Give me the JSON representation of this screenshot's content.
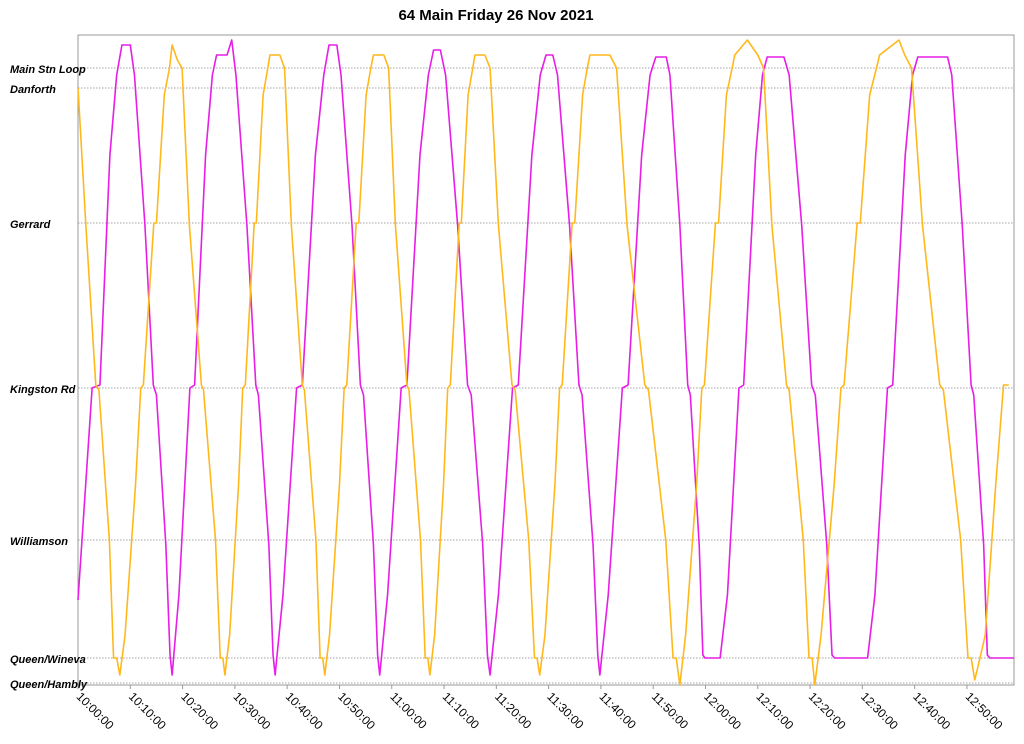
{
  "chart_data": {
    "type": "line",
    "title": "64 Main Friday 26 Nov 2021",
    "xlim": [
      600,
      779
    ],
    "xticks": [
      {
        "value": 600,
        "label": "10:00:00"
      },
      {
        "value": 610,
        "label": "10:10:00"
      },
      {
        "value": 620,
        "label": "10:20:00"
      },
      {
        "value": 630,
        "label": "10:30:00"
      },
      {
        "value": 640,
        "label": "10:40:00"
      },
      {
        "value": 650,
        "label": "10:50:00"
      },
      {
        "value": 660,
        "label": "11:00:00"
      },
      {
        "value": 670,
        "label": "11:10:00"
      },
      {
        "value": 680,
        "label": "11:20:00"
      },
      {
        "value": 690,
        "label": "11:30:00"
      },
      {
        "value": 700,
        "label": "11:40:00"
      },
      {
        "value": 710,
        "label": "11:50:00"
      },
      {
        "value": 720,
        "label": "12:00:00"
      },
      {
        "value": 730,
        "label": "12:10:00"
      },
      {
        "value": 740,
        "label": "12:20:00"
      },
      {
        "value": 750,
        "label": "12:30:00"
      },
      {
        "value": 760,
        "label": "12:40:00"
      },
      {
        "value": 770,
        "label": "12:50:00"
      }
    ],
    "ylim": [
      0,
      6.5
    ],
    "yticks": [
      {
        "value": 6.17,
        "label": "Main Stn Loop"
      },
      {
        "value": 5.97,
        "label": "Danforth"
      },
      {
        "value": 4.62,
        "label": "Gerrard"
      },
      {
        "value": 2.97,
        "label": "Kingston Rd"
      },
      {
        "value": 1.45,
        "label": "Williamson"
      },
      {
        "value": 0.27,
        "label": "Queen/Wineva"
      },
      {
        "value": 0.02,
        "label": "Queen/Hambly"
      }
    ],
    "grid": true,
    "series": [
      {
        "color": "#e61ee6",
        "x": [
          600.0,
          602.7,
          604.2,
          606.1,
          607.4,
          608.4,
          610.0,
          610.8,
          612.8,
          614.4,
          615.0,
          616.8,
          617.6,
          618.0,
          619.3,
          621.4,
          622.3,
          624.4,
          625.7,
          626.5,
          628.5,
          629.4,
          630.2,
          632.3,
          634.0,
          634.5,
          636.5,
          637.3,
          637.7,
          639.2,
          641.8,
          642.9,
          645.4,
          647.0,
          648.0,
          649.5,
          650.3,
          652.4,
          654.0,
          654.6,
          656.5,
          657.3,
          657.7,
          659.2,
          661.8,
          662.9,
          665.4,
          667.0,
          668.0,
          669.3,
          670.3,
          672.6,
          674.5,
          675.2,
          677.4,
          678.3,
          678.8,
          680.4,
          683.1,
          684.2,
          686.8,
          688.4,
          689.5,
          690.8,
          691.7,
          694.0,
          695.8,
          696.4,
          698.5,
          699.4,
          699.8,
          701.4,
          704.1,
          705.2,
          707.8,
          709.4,
          710.5,
          712.5,
          713.2,
          715.1,
          716.6,
          717.1,
          718.8,
          719.5,
          719.9,
          722.8,
          724.2,
          726.4,
          727.3,
          729.6,
          730.9,
          731.8,
          735.0,
          736.0,
          738.4,
          740.3,
          741.0,
          743.2,
          744.2,
          744.7,
          751.0,
          752.4,
          754.8,
          755.8,
          758.2,
          759.6,
          760.6,
          766.3,
          767.1,
          769.1,
          770.8,
          771.3,
          773.2,
          773.9,
          774.4,
          779.0
        ],
        "values": [
          0.85,
          2.97,
          3.0,
          5.3,
          6.1,
          6.4,
          6.4,
          6.1,
          4.6,
          3.0,
          2.9,
          1.4,
          0.3,
          0.1,
          0.9,
          2.97,
          3.0,
          5.3,
          6.1,
          6.3,
          6.3,
          6.45,
          6.1,
          4.6,
          3.0,
          2.9,
          1.4,
          0.3,
          0.1,
          0.9,
          2.97,
          3.0,
          5.3,
          6.1,
          6.4,
          6.4,
          6.1,
          4.6,
          3.0,
          2.9,
          1.4,
          0.3,
          0.1,
          0.9,
          2.97,
          3.0,
          5.3,
          6.1,
          6.35,
          6.35,
          6.1,
          4.6,
          3.0,
          2.9,
          1.4,
          0.3,
          0.1,
          0.9,
          2.97,
          3.0,
          5.3,
          6.1,
          6.3,
          6.3,
          6.1,
          4.6,
          3.0,
          2.9,
          1.4,
          0.3,
          0.1,
          0.9,
          2.97,
          3.0,
          5.3,
          6.1,
          6.28,
          6.28,
          6.1,
          4.6,
          3.0,
          2.9,
          1.4,
          0.3,
          0.27,
          0.27,
          0.9,
          2.97,
          3.0,
          5.3,
          6.1,
          6.28,
          6.28,
          6.1,
          4.6,
          3.0,
          2.9,
          1.4,
          0.3,
          0.27,
          0.27,
          0.9,
          2.97,
          3.0,
          5.3,
          6.1,
          6.28,
          6.28,
          6.1,
          4.6,
          3.0,
          2.9,
          1.4,
          0.3,
          0.27,
          0.27
        ]
      },
      {
        "color": "#ffb81c",
        "x": [
          600.0,
          601.5,
          603.4,
          604.0,
          606.0,
          606.8,
          607.4,
          608.0,
          609.0,
          611.0,
          612.0,
          612.5,
          614.5,
          615.0,
          616.5,
          617.5,
          618.0,
          619.0,
          619.9,
          621.3,
          623.6,
          624.0,
          626.3,
          627.2,
          627.7,
          628.1,
          629.0,
          630.7,
          631.5,
          632.0,
          633.7,
          634.1,
          635.4,
          636.3,
          636.7,
          638.6,
          639.5,
          640.8,
          642.9,
          643.3,
          645.5,
          646.3,
          646.8,
          647.2,
          648.1,
          650.0,
          650.9,
          651.4,
          653.2,
          653.7,
          655.1,
          656.0,
          656.5,
          658.5,
          659.4,
          660.7,
          662.9,
          663.3,
          665.5,
          666.4,
          666.9,
          667.3,
          668.2,
          669.9,
          670.7,
          671.2,
          672.9,
          673.3,
          674.6,
          675.5,
          675.9,
          677.8,
          678.8,
          680.4,
          683.0,
          683.6,
          686.2,
          687.3,
          687.8,
          688.3,
          689.3,
          691.2,
          692.1,
          692.6,
          694.5,
          695.0,
          696.5,
          697.4,
          697.9,
          701.7,
          703.0,
          705.0,
          708.4,
          709.1,
          712.4,
          713.8,
          714.4,
          715.1,
          716.2,
          718.3,
          719.3,
          719.8,
          721.9,
          722.5,
          724.0,
          725.1,
          725.6,
          728.0,
          730.0,
          731.1,
          732.7,
          735.5,
          736.0,
          738.7,
          739.8,
          740.4,
          740.9,
          742.1,
          744.6,
          745.9,
          746.5,
          749.0,
          749.6,
          751.4,
          752.7,
          753.3,
          757.0,
          758.1,
          759.4,
          761.5,
          764.8,
          765.5,
          768.8,
          770.2,
          770.8,
          771.5,
          772.5,
          773.5,
          775.5,
          777.0,
          778.0
        ],
        "values": [
          5.97,
          4.6,
          3.0,
          2.95,
          1.45,
          0.27,
          0.27,
          0.1,
          0.5,
          2.0,
          2.97,
          3.0,
          4.62,
          4.62,
          5.9,
          6.17,
          6.4,
          6.25,
          6.17,
          4.6,
          3.0,
          2.95,
          1.45,
          0.27,
          0.27,
          0.1,
          0.5,
          2.0,
          2.97,
          3.0,
          4.62,
          4.62,
          5.9,
          6.17,
          6.3,
          6.3,
          6.17,
          4.6,
          3.0,
          2.95,
          1.45,
          0.27,
          0.27,
          0.1,
          0.5,
          2.0,
          2.97,
          3.0,
          4.62,
          4.62,
          5.9,
          6.17,
          6.3,
          6.3,
          6.17,
          4.6,
          3.0,
          2.95,
          1.45,
          0.27,
          0.27,
          0.1,
          0.5,
          2.0,
          2.97,
          3.0,
          4.62,
          4.62,
          5.9,
          6.17,
          6.3,
          6.3,
          6.17,
          4.6,
          3.0,
          2.95,
          1.45,
          0.27,
          0.27,
          0.1,
          0.5,
          2.0,
          2.97,
          3.0,
          4.62,
          4.62,
          5.9,
          6.17,
          6.3,
          6.3,
          6.17,
          4.6,
          3.0,
          2.95,
          1.45,
          0.27,
          0.27,
          0.0,
          0.5,
          2.0,
          2.97,
          3.0,
          4.62,
          4.62,
          5.9,
          6.17,
          6.3,
          6.45,
          6.3,
          6.17,
          4.6,
          3.0,
          2.95,
          1.45,
          0.27,
          0.27,
          0.0,
          0.5,
          2.0,
          2.97,
          3.0,
          4.62,
          4.62,
          5.9,
          6.17,
          6.3,
          6.45,
          6.3,
          6.17,
          4.6,
          3.0,
          2.95,
          1.45,
          0.27,
          0.27,
          0.05,
          0.27,
          0.5,
          2.0,
          3.0,
          3.0
        ]
      }
    ]
  }
}
